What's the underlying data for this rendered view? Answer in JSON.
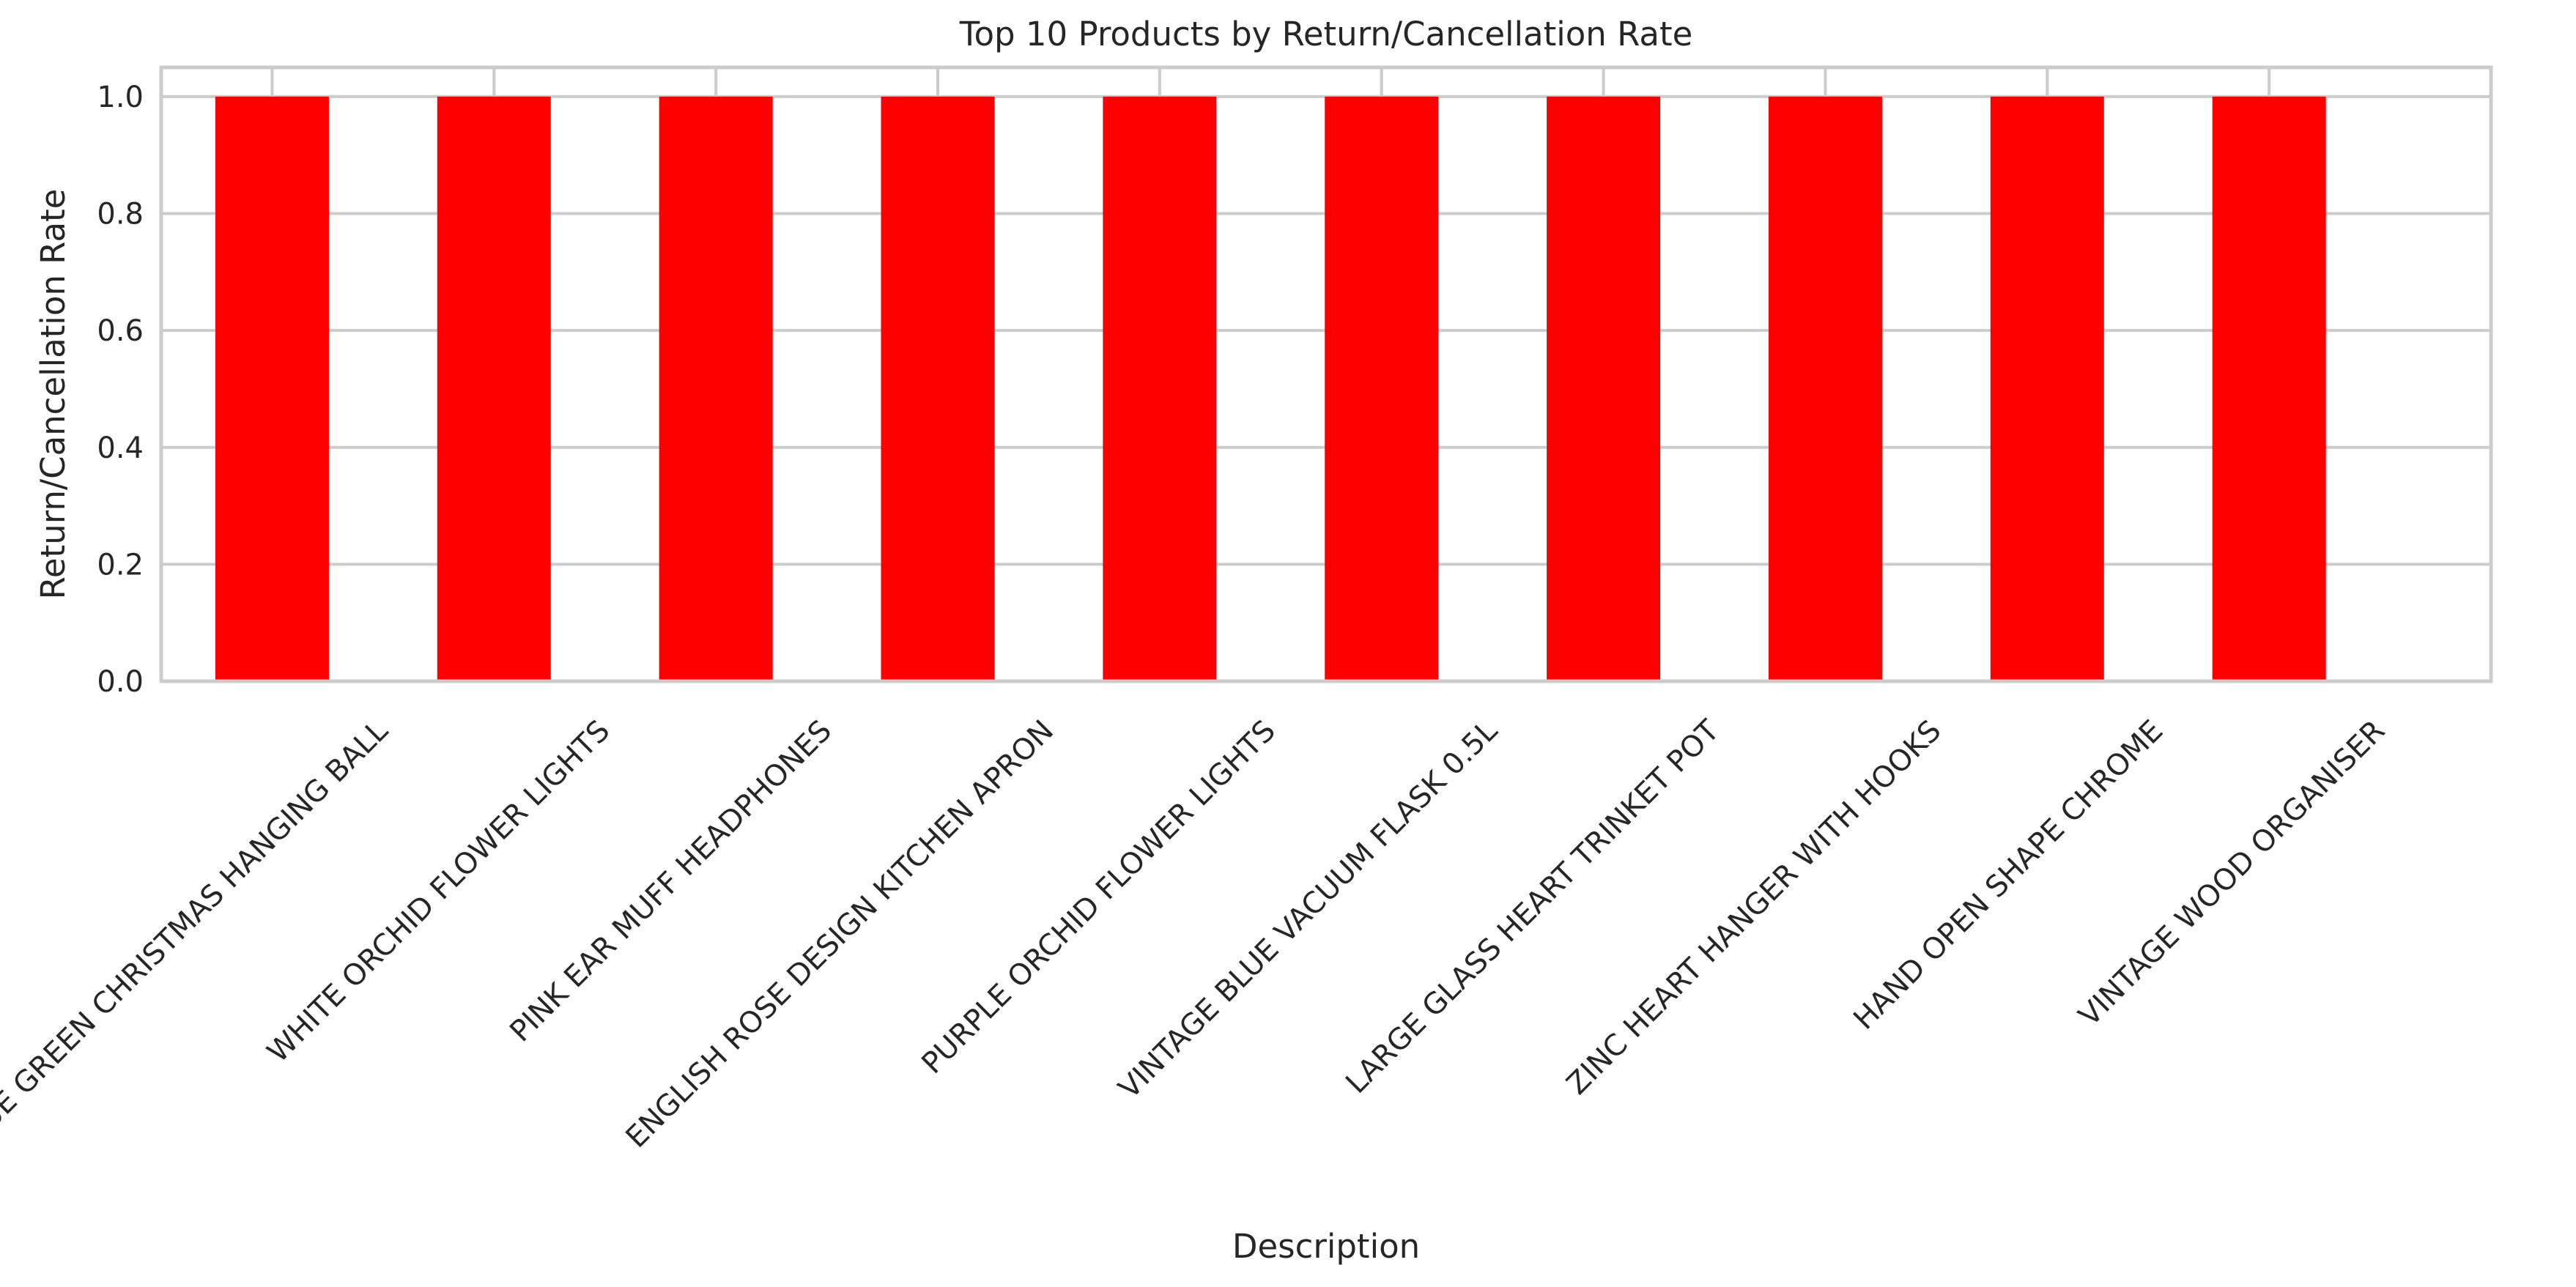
{
  "chart_data": {
    "type": "bar",
    "title": "Top 10 Products by Return/Cancellation Rate",
    "xlabel": "Description",
    "ylabel": "Return/Cancellation Rate",
    "categories": [
      "BLUE GREEN CHRISTMAS HANGING BALL",
      "WHITE ORCHID FLOWER LIGHTS",
      "PINK EAR MUFF HEADPHONES",
      "ENGLISH ROSE DESIGN KITCHEN APRON",
      "PURPLE ORCHID FLOWER LIGHTS",
      "VINTAGE BLUE VACUUM FLASK 0.5L",
      "LARGE GLASS HEART TRINKET POT",
      "ZINC HEART HANGER WITH HOOKS",
      "HAND OPEN SHAPE CHROME",
      "VINTAGE WOOD ORGANISER"
    ],
    "values": [
      1.0,
      1.0,
      1.0,
      1.0,
      1.0,
      1.0,
      1.0,
      1.0,
      1.0,
      1.0
    ],
    "ylim": [
      0,
      1.05
    ],
    "yticks": [
      "0.0",
      "0.2",
      "0.4",
      "0.6",
      "0.8",
      "1.0"
    ],
    "grid": true,
    "bar_color": "#ff0000"
  }
}
